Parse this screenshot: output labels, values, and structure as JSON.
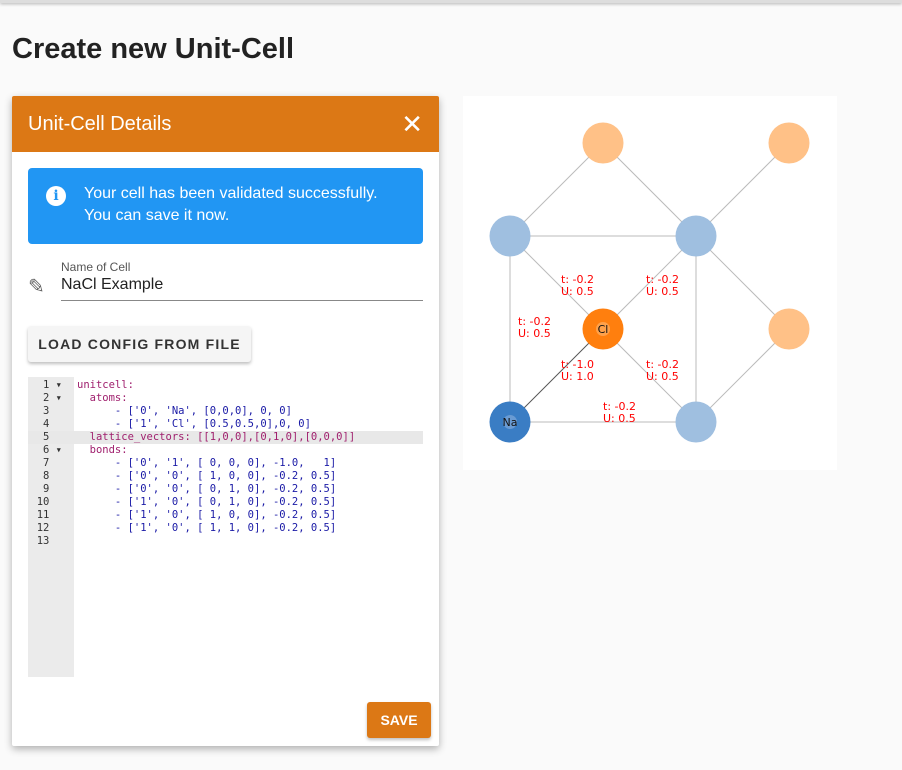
{
  "page_title": "Create new Unit-Cell",
  "dialog": {
    "title": "Unit-Cell Details",
    "close_icon": "close-icon",
    "alert": {
      "line1": "Your cell has been validated successfully.",
      "line2": "You can save it now.",
      "icon": "info-icon"
    },
    "name_field": {
      "label": "Name of Cell",
      "value": "NaCl Example",
      "icon": "pencil-icon"
    },
    "load_button": "LOAD CONFIG FROM FILE",
    "save_button": "SAVE",
    "editor": {
      "active_line": 5,
      "lines": [
        "unitcell:",
        "  atoms:",
        "      - ['0', 'Na', [0,0,0], 0, 0]",
        "      - ['1', 'Cl', [0.5,0.5,0],0, 0]",
        "  lattice_vectors: [[1,0,0],[0,1,0],[0,0,0]]",
        "  bonds:",
        "      - ['0', '1', [ 0, 0, 0], -1.0,   1]",
        "      - ['0', '0', [ 1, 0, 0], -0.2, 0.5]",
        "      - ['0', '0', [ 0, 1, 0], -0.2, 0.5]",
        "      - ['1', '0', [ 0, 1, 0], -0.2, 0.5]",
        "      - ['1', '0', [ 1, 0, 0], -0.2, 0.5]",
        "      - ['1', '0', [ 1, 1, 0], -0.2, 0.5]",
        ""
      ]
    }
  },
  "diagram": {
    "colors": {
      "na": "#3a7dc4",
      "na_ghost": "#9fbfe0",
      "cl": "#ff7f0e",
      "cl_ghost": "#ffc187",
      "bond": "#bbbbbb",
      "label": "#ff0000"
    },
    "atoms": [
      {
        "label": "Na"
      },
      {
        "label": "Cl"
      }
    ],
    "bond_labels": [
      {
        "t": "t: -0.2",
        "u": "U: 0.5"
      },
      {
        "t": "t: -0.2",
        "u": "U: 0.5"
      },
      {
        "t": "t: -0.2",
        "u": "U: 0.5"
      },
      {
        "t": "t: -1.0",
        "u": "U: 1.0"
      },
      {
        "t": "t: -0.2",
        "u": "U: 0.5"
      },
      {
        "t": "t: -0.2",
        "u": "U: 0.5"
      }
    ]
  }
}
